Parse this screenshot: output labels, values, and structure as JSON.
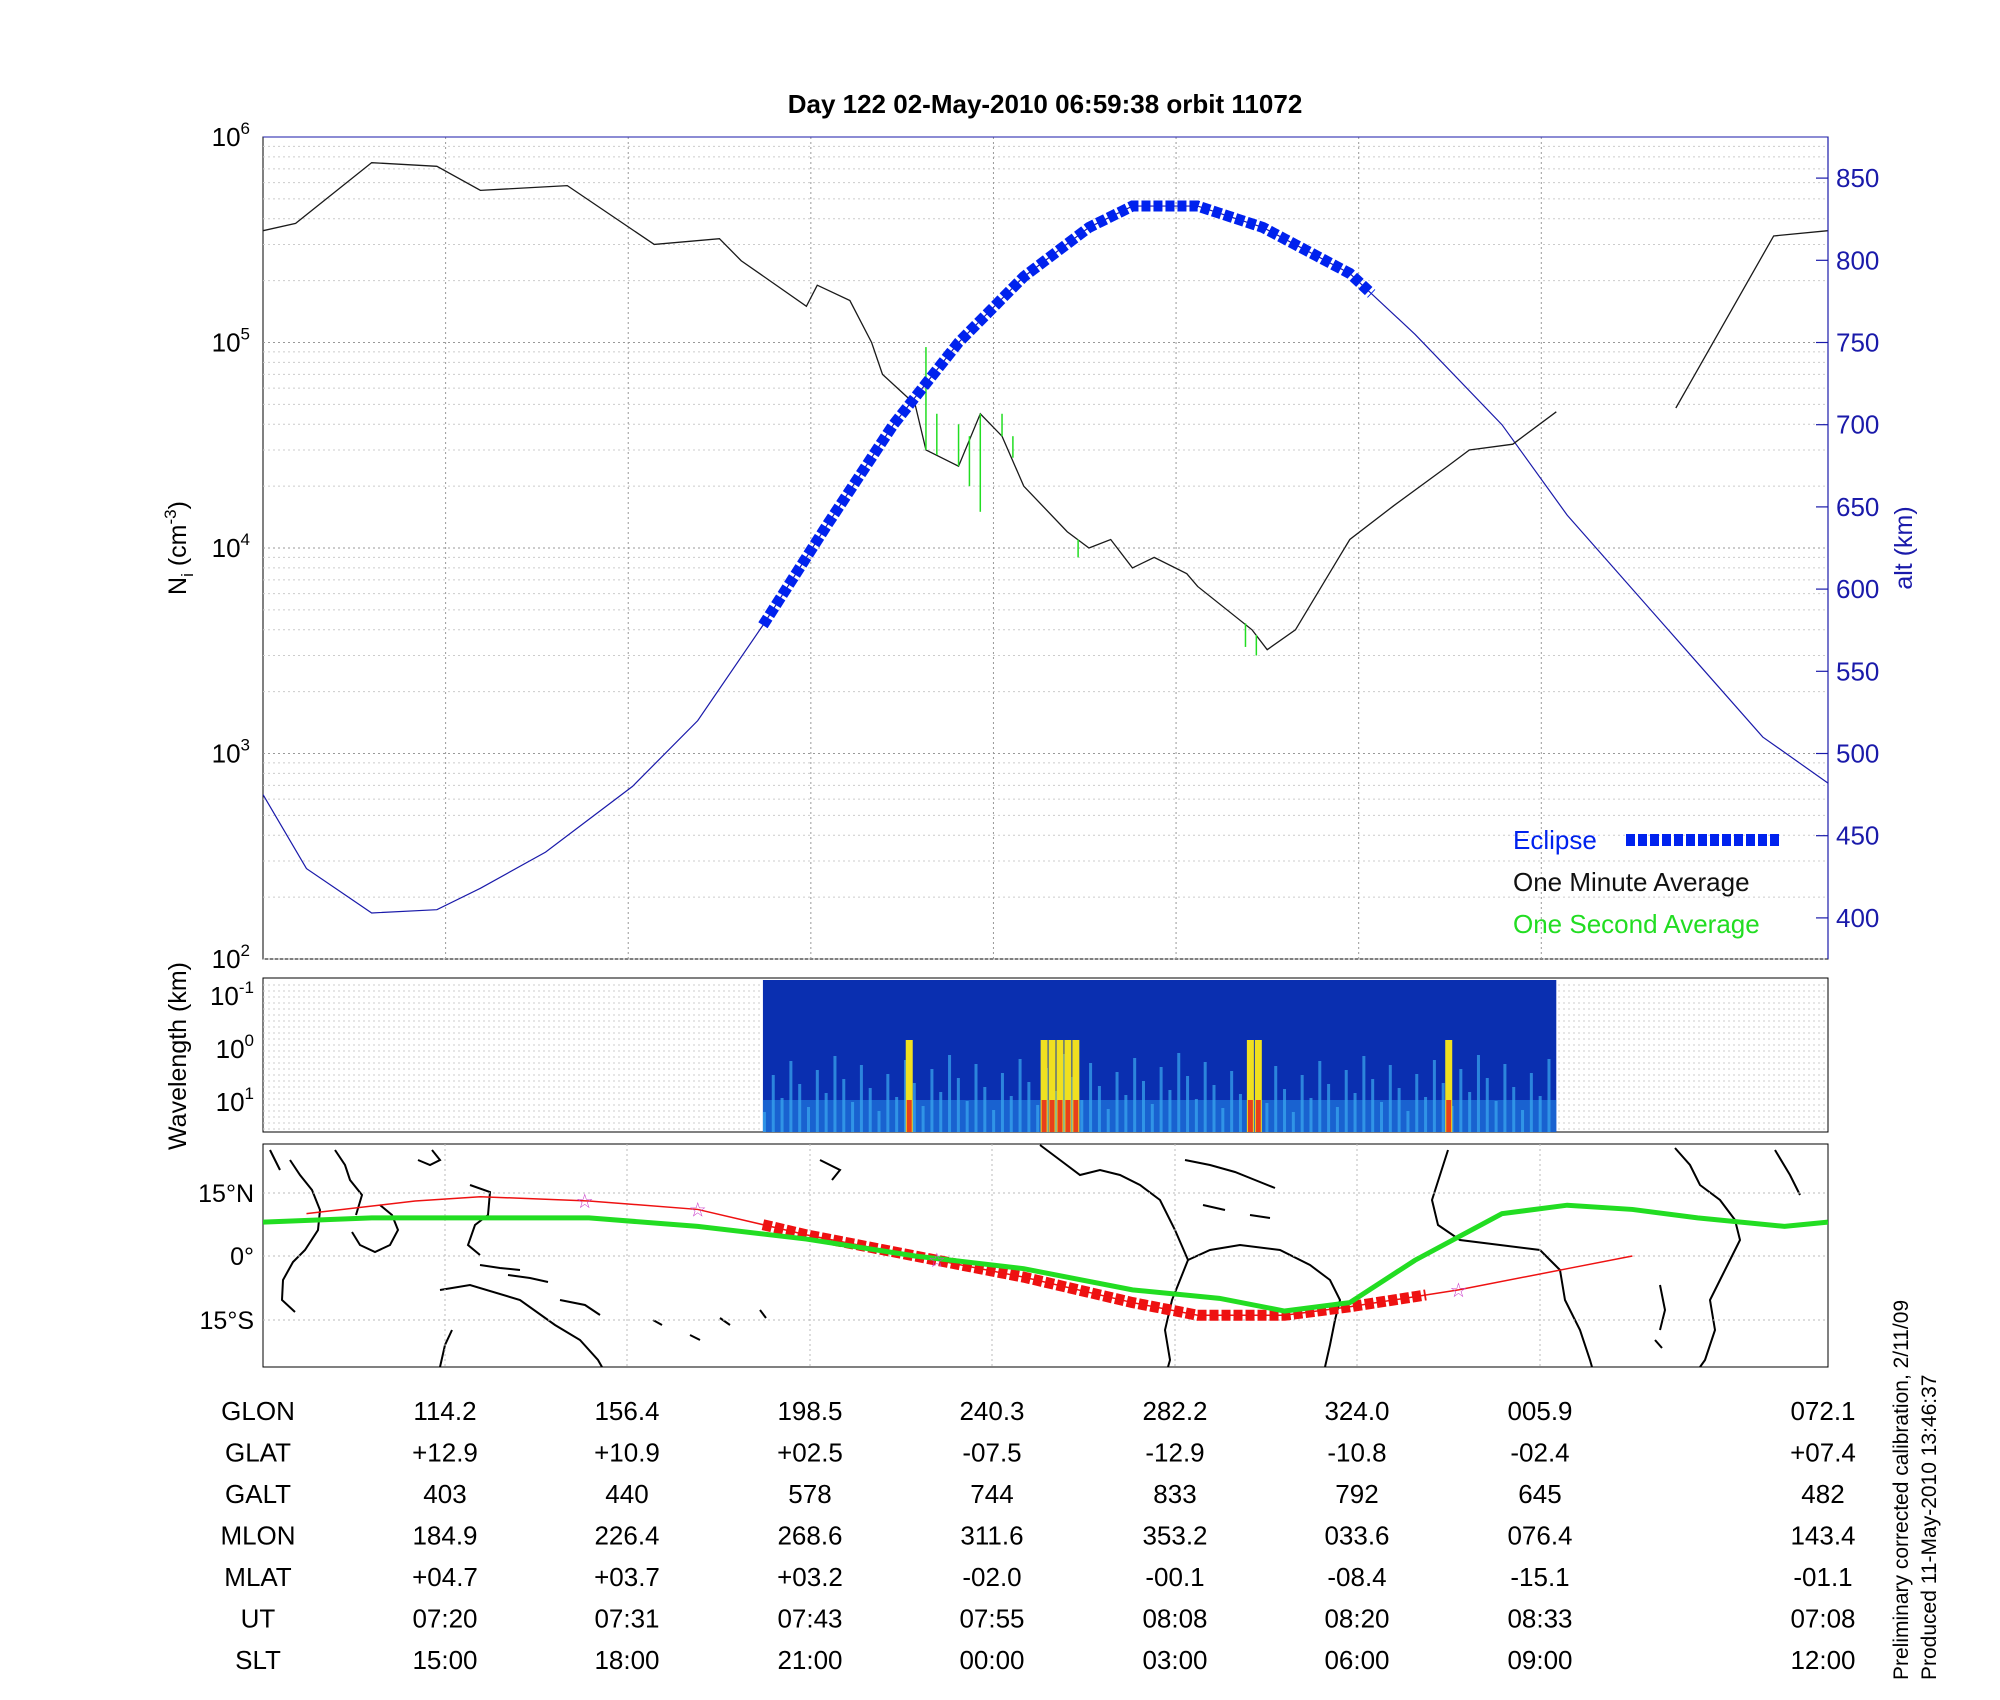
{
  "title": "Day 122  02-May-2010 06:59:38   orbit 11072",
  "footnote": {
    "line1": "Preliminary corrected calibration, 2/11/09",
    "line2": "Produced 11-May-2010 13:46:37"
  },
  "colors": {
    "eclipse": "#0022ee",
    "minute_average": "#1a1a1a",
    "second_average": "#22dd22",
    "altitude": "#1a1aaa",
    "track_red": "#ee1111",
    "track_green": "#22dd22",
    "star": "#cc44cc"
  },
  "chart_data": [
    {
      "id": "ion-density",
      "type": "line",
      "ylabel": "N_i (cm^-3)",
      "y2label": "alt (km)",
      "yscale": "log",
      "ylim": [
        100,
        1000000
      ],
      "y_tick_labels": [
        {
          "base": "10",
          "exp": "2"
        },
        {
          "base": "10",
          "exp": "3"
        },
        {
          "base": "10",
          "exp": "4"
        },
        {
          "base": "10",
          "exp": "5"
        },
        {
          "base": "10",
          "exp": "6"
        }
      ],
      "y2lim": [
        375,
        875
      ],
      "y2_ticks": [
        "400",
        "450",
        "500",
        "550",
        "600",
        "650",
        "700",
        "750",
        "800",
        "850"
      ],
      "grid": true,
      "legend": {
        "position": "bottom-right",
        "entries": [
          {
            "label": "Eclipse",
            "color": "#0022ee"
          },
          {
            "label": "One Minute Average",
            "color": "#1a1a1a"
          },
          {
            "label": "One Second Average",
            "color": "#22dd22"
          }
        ]
      },
      "series": [
        {
          "name": "One Minute Average",
          "x": [
            0,
            0.15,
            0.5,
            0.8,
            1.0,
            1.4,
            1.8,
            2.1,
            2.2,
            2.5,
            2.55,
            2.7,
            2.8,
            2.85,
            3.0,
            3.05,
            3.2,
            3.3,
            3.4,
            3.5,
            3.7,
            3.8,
            3.9,
            4.0,
            4.1,
            4.25,
            4.3,
            4.55,
            4.62,
            4.75,
            4.95,
            5.0,
            5.2,
            5.45,
            5.55,
            5.75,
            5.95,
            6.1,
            6.25,
            6.5,
            6.95,
            7.2
          ],
          "y": [
            350000,
            380000,
            750000,
            720000,
            550000,
            580000,
            300000,
            320000,
            250000,
            150000,
            190000,
            160000,
            100000,
            70000,
            50000,
            30000,
            25000,
            45000,
            35000,
            20000,
            12000,
            10000,
            11000,
            8000,
            9000,
            7500,
            6500,
            4000,
            3200,
            4000,
            9000,
            11000,
            16000,
            25000,
            30000,
            32000,
            46000,
            null,
            null,
            48000,
            330000,
            350000
          ]
        },
        {
          "name": "One Second Average",
          "x": [
            3.05,
            3.1,
            3.2,
            3.25,
            3.3,
            3.35,
            3.4,
            3.45,
            3.75,
            4.52,
            4.57
          ],
          "y": [
            95000,
            45000,
            40000,
            20000,
            15000,
            40000,
            45000,
            35000,
            9000,
            3300,
            3000
          ]
        },
        {
          "name": "alt (km)",
          "axis": "right",
          "x": [
            0,
            0.2,
            0.5,
            0.8,
            1.0,
            1.3,
            1.7,
            2.0,
            2.3,
            2.6,
            2.9,
            3.2,
            3.5,
            3.8,
            4.0,
            4.3,
            4.6,
            5.0,
            5.3,
            5.7,
            6.0,
            6.3,
            6.6,
            6.9,
            7.2
          ],
          "y": [
            475,
            430,
            403,
            405,
            418,
            440,
            480,
            520,
            578,
            640,
            700,
            750,
            790,
            820,
            833,
            833,
            820,
            792,
            755,
            700,
            645,
            600,
            555,
            510,
            482
          ]
        },
        {
          "name": "Eclipse",
          "axis": "right",
          "x_range": [
            2.3,
            5.12
          ]
        }
      ]
    },
    {
      "id": "spectrogram",
      "type": "heatmap",
      "ylabel": "Wavelength (km)",
      "y_tick_labels": [
        {
          "base": "10",
          "exp": "-1"
        },
        {
          "base": "10",
          "exp": "0"
        },
        {
          "base": "10",
          "exp": "1"
        }
      ],
      "x_range": [
        2.3,
        5.95
      ],
      "hot_columns": [
        0.18,
        0.35,
        0.36,
        0.37,
        0.38,
        0.39,
        0.61,
        0.62,
        0.86
      ]
    },
    {
      "id": "ground-track",
      "type": "line",
      "y_tick_labels": [
        "15°N",
        "0°",
        "15°S"
      ],
      "series": [
        {
          "name": "track_green",
          "x": [
            0,
            0.5,
            1.0,
            1.5,
            2.0,
            2.5,
            3.0,
            3.5,
            4.0,
            4.4,
            4.7,
            5.0,
            5.3,
            5.7,
            6.0,
            6.3,
            6.6,
            7.0,
            7.2
          ],
          "y": [
            8,
            9,
            9,
            9,
            7,
            4,
            0,
            -3,
            -8,
            -10,
            -13,
            -11,
            -1,
            10,
            12,
            11,
            9,
            7,
            8
          ]
        },
        {
          "name": "track_red",
          "x": [
            0.2,
            0.7,
            1.0,
            1.5,
            2.0,
            2.5,
            3.0,
            3.5,
            4.0,
            4.3,
            4.7,
            5.0,
            5.5,
            6.0,
            6.3
          ],
          "y": [
            10,
            13,
            14,
            13,
            11,
            5,
            0,
            -5,
            -11,
            -14,
            -14,
            -12,
            -8,
            -3,
            0
          ]
        },
        {
          "name": "red_segment",
          "x_range": [
            2.3,
            5.38
          ]
        }
      ],
      "stars_x": [
        1.48,
        2.0,
        3.1,
        5.5
      ]
    }
  ],
  "table": {
    "columns": [
      {
        "label": "GLON",
        "values": [
          "114.2",
          "156.4",
          "198.5",
          "240.3",
          "282.2",
          "324.0",
          "005.9",
          "072.1"
        ]
      },
      {
        "label": "GLAT",
        "values": [
          "+12.9",
          "+10.9",
          "+02.5",
          "-07.5",
          "-12.9",
          "-10.8",
          "-02.4",
          "+07.4"
        ]
      },
      {
        "label": "GALT",
        "values": [
          "403",
          "440",
          "578",
          "744",
          "833",
          "792",
          "645",
          "482"
        ]
      },
      {
        "label": "MLON",
        "values": [
          "184.9",
          "226.4",
          "268.6",
          "311.6",
          "353.2",
          "033.6",
          "076.4",
          "143.4"
        ]
      },
      {
        "label": "MLAT",
        "values": [
          "+04.7",
          "+03.7",
          "+03.2",
          "-02.0",
          "-00.1",
          "-08.4",
          "-15.1",
          "-01.1"
        ]
      },
      {
        "label": "UT",
        "values": [
          "07:20",
          "07:31",
          "07:43",
          "07:55",
          "08:08",
          "08:20",
          "08:33",
          "07:08"
        ]
      },
      {
        "label": "SLT",
        "values": [
          "15:00",
          "18:00",
          "21:00",
          "00:00",
          "03:00",
          "06:00",
          "09:00",
          "12:00"
        ]
      }
    ]
  }
}
